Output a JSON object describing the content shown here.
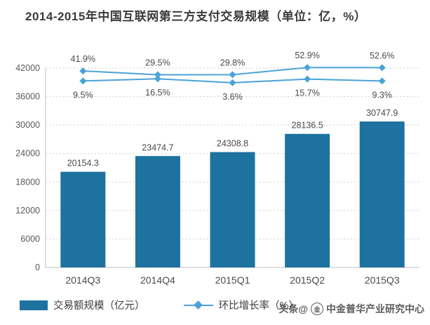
{
  "title": "2014-2015年中国互联网第三方支付交易规模（单位：亿，%）",
  "chart_data": {
    "type": "bar+line",
    "title": "2014-2015年中国互联网第三方支付交易规模（单位：亿，%）",
    "categories": [
      "2014Q3",
      "2014Q4",
      "2015Q1",
      "2015Q2",
      "2015Q3"
    ],
    "series": [
      {
        "name": "交易额规模（亿元）",
        "type": "bar",
        "values": [
          20154.3,
          23474.7,
          24308.8,
          28136.5,
          30747.9
        ],
        "color": "#1d729f",
        "label_position": "above-bar"
      },
      {
        "name": "环比增长率（%）",
        "type": "line",
        "values": [
          41.9,
          29.5,
          29.8,
          52.9,
          52.6
        ],
        "color": "#4aa3d6",
        "marker": "diamond",
        "label_position": "above"
      },
      {
        "name": "环比增长率（%）",
        "type": "line",
        "values": [
          9.5,
          16.5,
          3.6,
          15.7,
          9.3
        ],
        "color": "#4aa3d6",
        "marker": "diamond",
        "label_position": "below"
      }
    ],
    "xlabel": "",
    "ylabel": "",
    "ylim": [
      0,
      42000
    ],
    "y_ticks": [
      0,
      6000,
      12000,
      18000,
      24000,
      30000,
      36000,
      42000
    ],
    "grid": "dotted-horizontal",
    "legend_position": "bottom"
  },
  "legend": {
    "items": [
      {
        "label": "交易额规模（亿元）",
        "marker": "bar-swatch"
      },
      {
        "label": "环比增长率（%）",
        "marker": "line-diamond-swatch"
      }
    ]
  },
  "watermark": {
    "prefix": "头条@",
    "logo_icon": "circular-seal-icon",
    "name": "中金普华产业研究中心"
  },
  "colors": {
    "bar": "#1d729f",
    "line": "#4aa3d6",
    "grid": "#cfcfcf",
    "axis": "#bfbfbf",
    "label_text": "#4a4a4a",
    "tick_text": "#595959",
    "title_text": "#3b3b3b"
  }
}
